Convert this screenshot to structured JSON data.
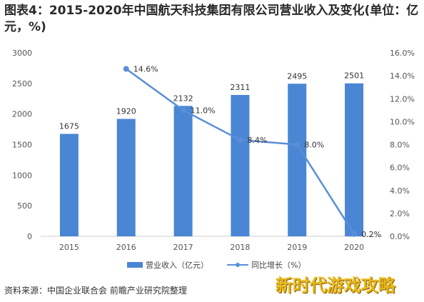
{
  "title": "图表4：2015-2020年中国航天科技集团有限公司营业收入及变化(单位：亿元，%)",
  "colors": {
    "bar": "#4a86d4",
    "line": "#5a8fd6",
    "axis_text": "#555555",
    "brand": "#e6b81e"
  },
  "chart_data": {
    "type": "bar+line",
    "categories": [
      "2015",
      "2016",
      "2017",
      "2018",
      "2019",
      "2020"
    ],
    "series": [
      {
        "name": "营业收入（亿元）",
        "type": "bar",
        "axis": "left",
        "values": [
          1675,
          1920,
          2132,
          2311,
          2495,
          2501
        ],
        "labels": [
          "1675",
          "1920",
          "2132",
          "2311",
          "2495",
          "2501"
        ]
      },
      {
        "name": "同比增长（%）",
        "type": "line",
        "axis": "right",
        "values": [
          null,
          14.6,
          11.0,
          8.4,
          8.0,
          0.2
        ],
        "labels": [
          "",
          "14.6%",
          "11.0%",
          "8.4%",
          "8.0%",
          "0.2%"
        ]
      }
    ],
    "y_left": {
      "min": 0,
      "max": 3000,
      "ticks": [
        "0",
        "500",
        "1000",
        "1500",
        "2000",
        "2500",
        "3000"
      ]
    },
    "y_right": {
      "min": 0,
      "max": 16,
      "ticks": [
        "0.0%",
        "2.0%",
        "4.0%",
        "6.0%",
        "8.0%",
        "10.0%",
        "12.0%",
        "14.0%",
        "16.0%"
      ]
    },
    "legend": "bottom-center",
    "grid": false
  },
  "legend": {
    "bar_label": "营业收入（亿元）",
    "line_label": "同比增长（%）"
  },
  "source": "资料来源：中国企业联合会 前瞻产业研究院整理",
  "brand_text": "新时代游戏攻略"
}
